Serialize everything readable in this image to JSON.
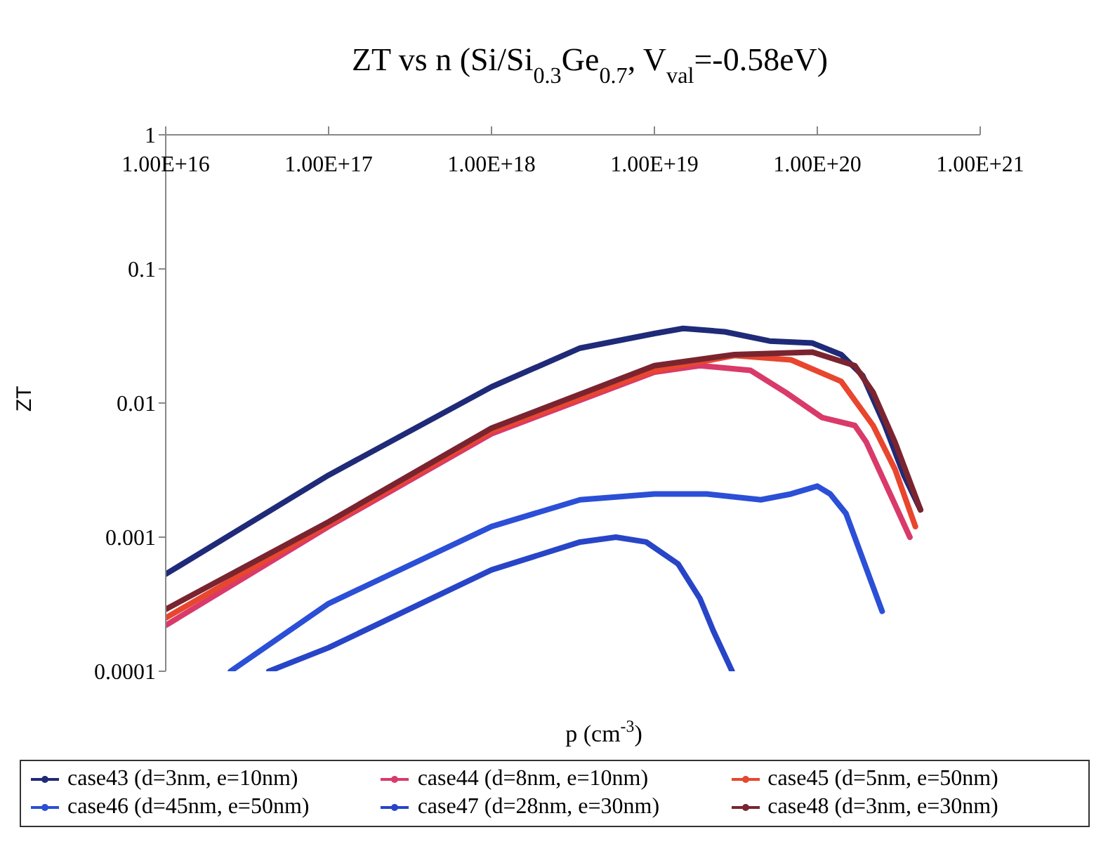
{
  "chart_data": {
    "type": "line",
    "title": "ZT vs n (Si/Si$_{0.3}$Ge$_{0.7}$, V$_{val}$=-0.58eV)",
    "xlabel": "p (cm$^{-3}$)",
    "ylabel": "ZT",
    "log": "xy",
    "legend": "bottom",
    "xlim": [
      1e+16,
      1e+21
    ],
    "xticks": [
      {
        "value": 1e+16,
        "label": "1.00E+16"
      },
      {
        "value": 1e+17,
        "label": "1.00E+17"
      },
      {
        "value": 1e+18,
        "label": "1.00E+18"
      },
      {
        "value": 1e+19,
        "label": "1.00E+19"
      },
      {
        "value": 1e+20,
        "label": "1.00E+20"
      },
      {
        "value": 1e+21,
        "label": "1.00E+21"
      }
    ],
    "ylim": [
      0.0001,
      1
    ],
    "yticks": [
      0.0001,
      0.001,
      0.01,
      0.1,
      1
    ],
    "series": [
      {
        "name": "case43 (d=3nm, e=10nm)",
        "color": "#1f2a78",
        "x": [
          1e+16,
          1e+17,
          1e+18,
          3.5e+18,
          1e+19,
          1.5e+19,
          2.7e+19,
          5.1e+19,
          9.3e+19,
          1.4e+20,
          1.9e+20,
          2.6e+20,
          3.4e+20,
          4.3e+20
        ],
        "values": [
          0.00053,
          0.0029,
          0.0132,
          0.0257,
          0.033,
          0.036,
          0.034,
          0.029,
          0.028,
          0.023,
          0.016,
          0.0068,
          0.0029,
          0.0016
        ]
      },
      {
        "name": "case44 (d=8nm, e=10nm)",
        "color": "#d93a6a",
        "x": [
          1e+16,
          1e+17,
          1e+18,
          1e+19,
          1.9e+19,
          3.9e+19,
          6.4e+19,
          1.07e+20,
          1.7e+20,
          2e+20,
          2.8e+20,
          3.7e+20
        ],
        "values": [
          0.00022,
          0.0012,
          0.0059,
          0.017,
          0.019,
          0.0175,
          0.012,
          0.0078,
          0.0068,
          0.0051,
          0.0021,
          0.001
        ]
      },
      {
        "name": "case45 (d=5nm, e=50nm)",
        "color": "#e8462e",
        "x": [
          1e+16,
          1e+17,
          1e+18,
          1e+19,
          3.1e+19,
          6.9e+19,
          1.4e+20,
          2.2e+20,
          3e+20,
          4e+20
        ],
        "values": [
          0.00025,
          0.00125,
          0.0062,
          0.0175,
          0.0226,
          0.021,
          0.0145,
          0.0068,
          0.0032,
          0.0012
        ]
      },
      {
        "name": "case46 (d=45nm, e=50nm)",
        "color": "#2b4fd6",
        "x": [
          2.5e+16,
          1e+17,
          1e+18,
          3.5e+18,
          1e+19,
          2.1e+19,
          4.5e+19,
          6.9e+19,
          1e+20,
          1.2e+20,
          1.5e+20,
          1.9e+20,
          2.5e+20
        ],
        "values": [
          0.0001,
          0.00032,
          0.0012,
          0.0019,
          0.0021,
          0.0021,
          0.0019,
          0.0021,
          0.0024,
          0.0021,
          0.0015,
          0.00069,
          0.00028
        ]
      },
      {
        "name": "case47 (d=28nm, e=30nm)",
        "color": "#2845c8",
        "x": [
          4.3e+16,
          1e+17,
          1e+18,
          3.5e+18,
          5.8e+18,
          8.9e+18,
          1.4e+19,
          1.9e+19,
          2.3e+19,
          3e+19
        ],
        "values": [
          0.0001,
          0.00015,
          0.00057,
          0.00092,
          0.001,
          0.00092,
          0.00063,
          0.00035,
          0.0002,
          0.0001
        ]
      },
      {
        "name": "case48 (d=3nm, e=30nm)",
        "color": "#7a2430",
        "x": [
          1e+16,
          1e+17,
          1e+18,
          1e+19,
          3.1e+19,
          9.3e+19,
          1.7e+20,
          2.2e+20,
          3e+20,
          4.3e+20
        ],
        "values": [
          0.00029,
          0.0013,
          0.0065,
          0.019,
          0.023,
          0.024,
          0.019,
          0.012,
          0.0051,
          0.0016
        ]
      }
    ]
  }
}
